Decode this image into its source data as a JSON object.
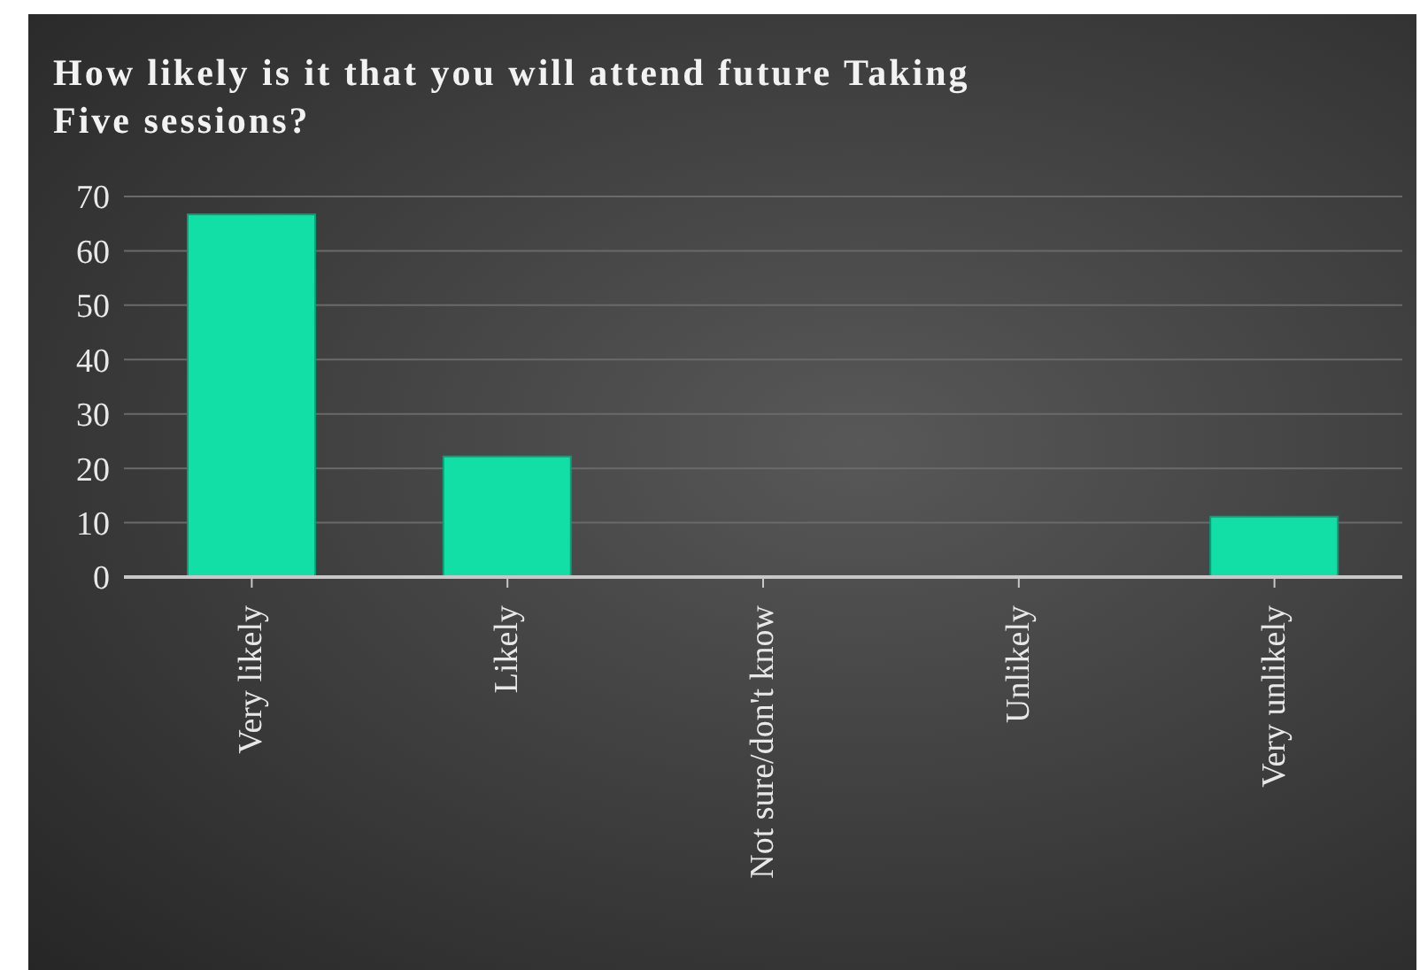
{
  "chart_data": {
    "type": "bar",
    "title": "How likely is it that you will attend future Taking Five sessions?",
    "categories": [
      "Very likely",
      "Likely",
      "Not sure/don't know",
      "Unlikely",
      "Very unlikely"
    ],
    "values": [
      66.7,
      22.2,
      0,
      0,
      11.1
    ],
    "color": "#12dfa6",
    "ylim": [
      0,
      70
    ],
    "yticks": [
      0,
      10,
      20,
      30,
      40,
      50,
      60,
      70
    ],
    "grid": "y"
  }
}
